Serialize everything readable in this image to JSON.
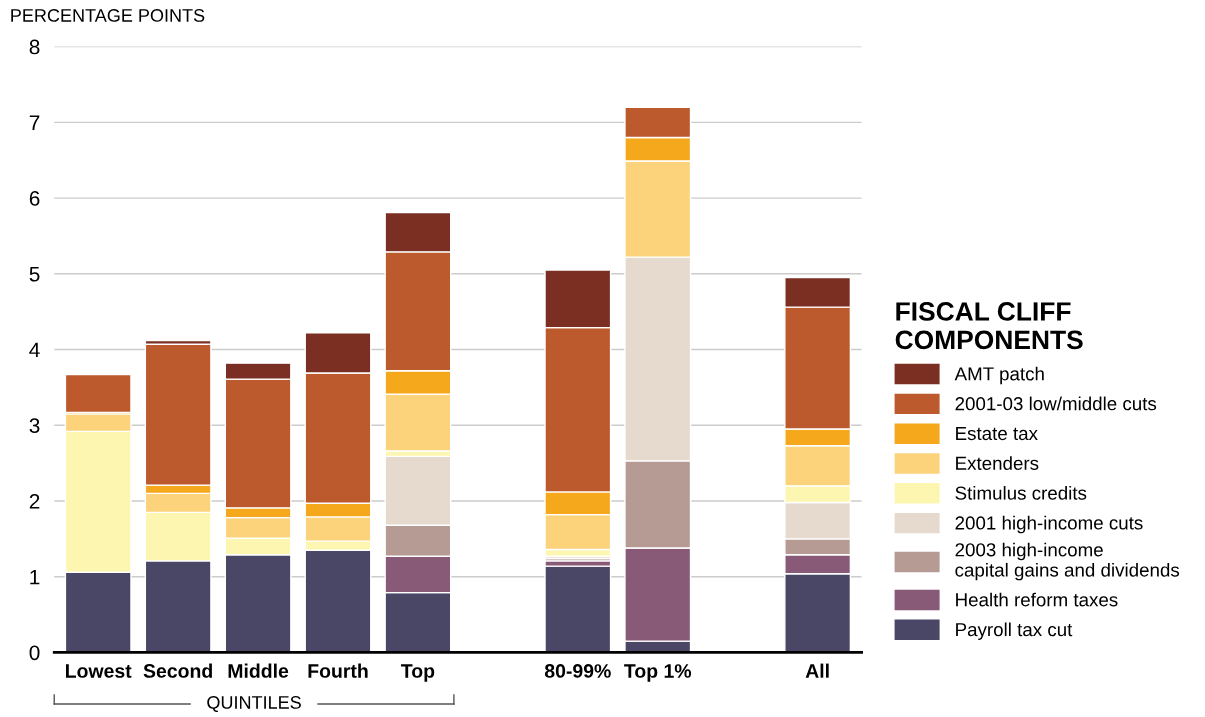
{
  "chart_data": {
    "type": "bar",
    "stacked": true,
    "ylabel": "PERCENTAGE POINTS",
    "legend_title": "FISCAL CLIFF\nCOMPONENTS",
    "legend": "right",
    "grid": "y",
    "categories": [
      "Lowest",
      "Second",
      "Middle",
      "Fourth",
      "Top",
      null,
      "80-99%",
      "Top 1%",
      null,
      "All"
    ],
    "ylim": [
      0,
      8
    ],
    "yticks": [
      0,
      1,
      2,
      3,
      4,
      5,
      6,
      7,
      8
    ],
    "annotations": [
      "QUINTILES"
    ],
    "series": [
      {
        "name": "Payroll tax cut",
        "color": "#4a4766",
        "values": [
          1.06,
          1.21,
          1.29,
          1.35,
          0.79,
          null,
          1.14,
          0.15,
          null,
          1.04
        ]
      },
      {
        "name": "Health reform taxes",
        "color": "#895a77",
        "values": [
          0,
          0,
          0,
          0,
          0.48,
          null,
          0.07,
          1.23,
          null,
          0.25
        ]
      },
      {
        "name": "2003 high-income\ncapital gains and dividends",
        "color": "#b69b95",
        "values": [
          0,
          0,
          0,
          0,
          0.41,
          null,
          0.03,
          1.15,
          null,
          0.21
        ]
      },
      {
        "name": "2001 high-income cuts",
        "color": "#e6dace",
        "values": [
          0,
          0,
          0,
          0,
          0.91,
          null,
          0.03,
          2.69,
          null,
          0.48
        ]
      },
      {
        "name": "Stimulus credits",
        "color": "#fdf6b0",
        "values": [
          1.86,
          0.64,
          0.22,
          0.12,
          0.07,
          null,
          0.09,
          0,
          null,
          0.22
        ]
      },
      {
        "name": "Extenders",
        "color": "#fcd27a",
        "values": [
          0.23,
          0.25,
          0.27,
          0.32,
          0.75,
          null,
          0.46,
          1.27,
          null,
          0.53
        ]
      },
      {
        "name": "Estate tax",
        "color": "#f6a81c",
        "values": [
          0.02,
          0.11,
          0.13,
          0.18,
          0.31,
          null,
          0.3,
          0.31,
          null,
          0.22
        ]
      },
      {
        "name": "2001-03 low/middle cuts",
        "color": "#bc5a2e",
        "values": [
          0.5,
          1.86,
          1.7,
          1.72,
          1.57,
          null,
          2.17,
          0.4,
          null,
          1.61
        ]
      },
      {
        "name": "AMT patch",
        "color": "#7b2e22",
        "values": [
          0,
          0.05,
          0.21,
          0.53,
          0.52,
          null,
          0.76,
          0,
          null,
          0.39
        ]
      }
    ]
  }
}
